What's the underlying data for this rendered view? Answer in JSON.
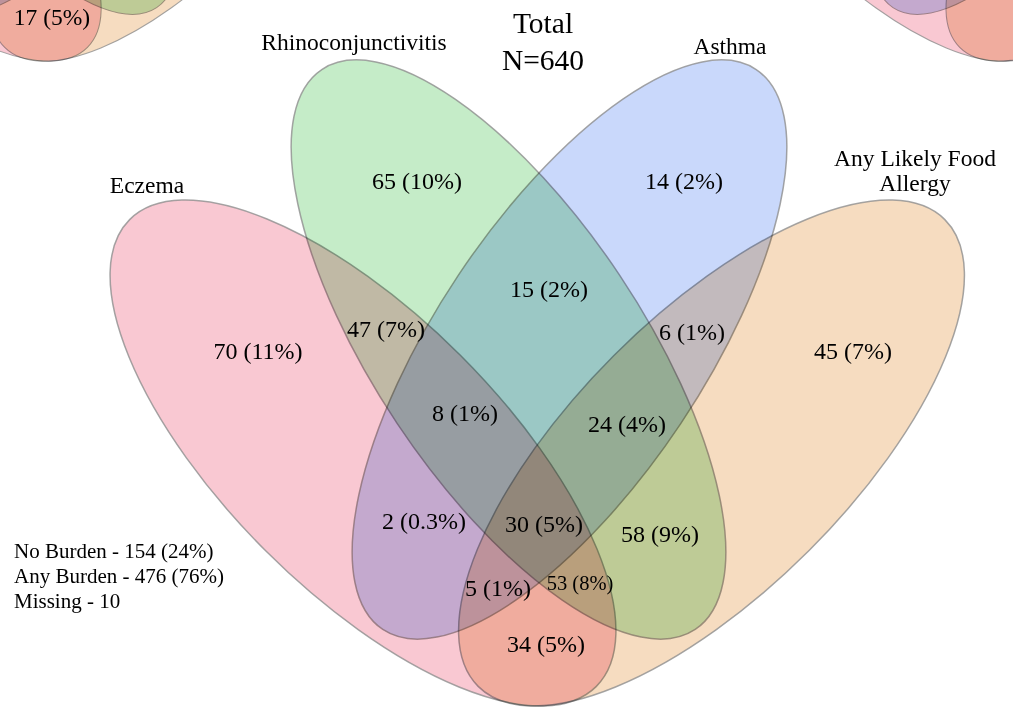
{
  "chart_data": {
    "type": "other",
    "title": "Total",
    "subtitle": "N=640",
    "categories": [
      "Eczema",
      "Rhinoconjunctivitis",
      "Asthma",
      "Any Likely Food Allergy"
    ],
    "colors": [
      "#f9c8d2",
      "#c5ecc8",
      "#c9d8fb",
      "#f6dcc0"
    ],
    "values": [
      70,
      65,
      14,
      45
    ],
    "value_labels": [
      "70 (11%)",
      "65 (10%)",
      "14 (2%)",
      "45 (7%)"
    ],
    "annotations": [
      "47 (7%)",
      "15 (2%)",
      "6 (1%)",
      "8 (1%)",
      "24 (4%)",
      "2 (0.3%)",
      "30 (5%)",
      "58 (9%)",
      "5 (1%)",
      "53 (8%)",
      "34 (5%)",
      "No Burden - 154 (24%)",
      "Any Burden - 476 (76%)",
      "Missing - 10",
      "17 (5%)"
    ]
  }
}
